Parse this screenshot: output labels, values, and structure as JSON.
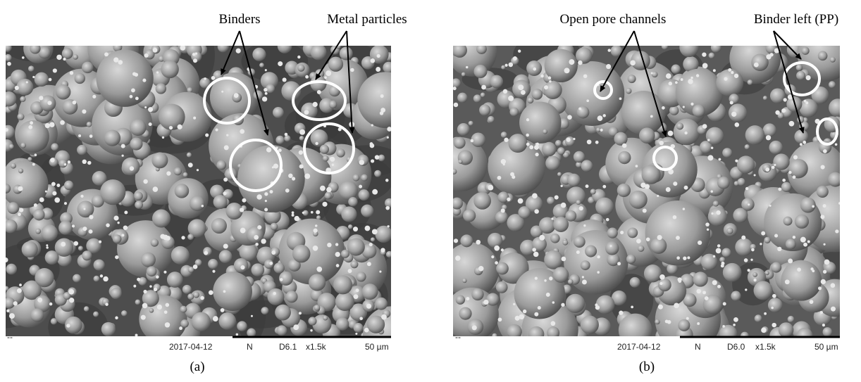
{
  "panels": [
    {
      "label": "(a)",
      "annotations": [
        "Binders",
        "Metal particles"
      ],
      "footer": {
        "dash": "--",
        "date": "2017-04-12",
        "mode": "N",
        "detector": "D6.1",
        "magnification": "x1.5k",
        "scale": "50 µm"
      }
    },
    {
      "label": "(b)",
      "annotations": [
        "Open pore channels",
        "Binder left (PP)"
      ],
      "footer": {
        "dash": "--",
        "date": "2017-04-12",
        "mode": "N",
        "detector": "D6.0",
        "magnification": "x1.5k",
        "scale": "50 µm"
      }
    }
  ]
}
